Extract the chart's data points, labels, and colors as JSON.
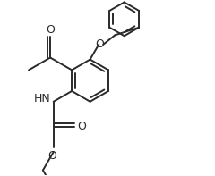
{
  "bg_color": "#ffffff",
  "line_color": "#2a2a2a",
  "lw": 1.4,
  "figsize": [
    2.4,
    1.97
  ],
  "dpi": 100,
  "xlim": [
    -2.5,
    5.5
  ],
  "ylim": [
    -3.8,
    3.2
  ]
}
